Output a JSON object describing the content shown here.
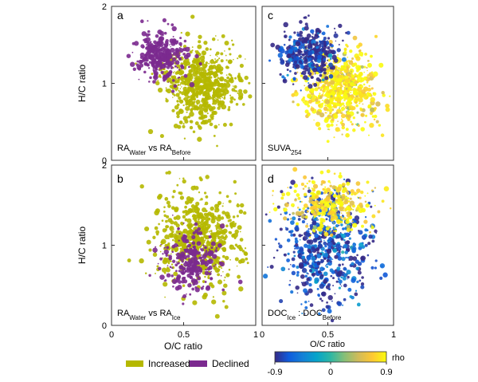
{
  "chart_data": [
    {
      "type": "scatter",
      "panel_letter": "a",
      "annotation_main": "RA",
      "annotation_sub1": "Water",
      "annotation_mid": " vs RA",
      "annotation_sub2": "Before",
      "xlabel": "",
      "ylabel": "H/C ratio",
      "xlim": [
        0,
        1
      ],
      "ylim": [
        0,
        2
      ],
      "x_ticks": [],
      "y_ticks": [
        "0",
        "1",
        "2"
      ],
      "color_mode": "categorical",
      "series": [
        {
          "name": "Increased",
          "color": "#b5b800",
          "cx": 0.62,
          "cy": 0.98,
          "sx": 0.13,
          "sy": 0.24,
          "n": 650
        },
        {
          "name": "Declined",
          "color": "#7b2a8f",
          "cx": 0.34,
          "cy": 1.36,
          "sx": 0.08,
          "sy": 0.16,
          "n": 320
        }
      ]
    },
    {
      "type": "scatter",
      "panel_letter": "c",
      "annotation_main": "SUVA",
      "annotation_sub1": "254",
      "annotation_mid": "",
      "annotation_sub2": "",
      "xlabel": "",
      "ylabel": "",
      "xlim": [
        0,
        1
      ],
      "ylim": [
        0,
        2
      ],
      "x_ticks": [],
      "y_ticks": [],
      "color_mode": "rho",
      "series": [
        {
          "name": "positive",
          "rho": 0.8,
          "cx": 0.6,
          "cy": 0.92,
          "sx": 0.14,
          "sy": 0.24,
          "n": 650
        },
        {
          "name": "negative",
          "rho": -0.85,
          "cx": 0.36,
          "cy": 1.4,
          "sx": 0.1,
          "sy": 0.18,
          "n": 380
        }
      ]
    },
    {
      "type": "scatter",
      "panel_letter": "b",
      "annotation_main": "RA",
      "annotation_sub1": "Water",
      "annotation_mid": " vs RA",
      "annotation_sub2": "Ice",
      "xlabel": "O/C ratio",
      "ylabel": "H/C ratio",
      "xlim": [
        0,
        1
      ],
      "ylim": [
        0,
        2
      ],
      "x_ticks": [
        "0",
        "0.5",
        "1"
      ],
      "y_ticks": [
        "0",
        "1",
        "2"
      ],
      "color_mode": "categorical",
      "series": [
        {
          "name": "Increased",
          "color": "#b5b800",
          "cx": 0.6,
          "cy": 1.08,
          "sx": 0.15,
          "sy": 0.3,
          "n": 640
        },
        {
          "name": "Declined",
          "color": "#7b2a8f",
          "cx": 0.55,
          "cy": 0.78,
          "sx": 0.1,
          "sy": 0.18,
          "n": 260
        }
      ]
    },
    {
      "type": "scatter",
      "panel_letter": "d",
      "annotation_main": "DOC",
      "annotation_sub1": "Ice",
      "annotation_mid": " : DOC",
      "annotation_sub2": "Before",
      "xlabel": "O/C ratio",
      "ylabel": "",
      "xlim": [
        0,
        1
      ],
      "ylim": [
        0,
        2
      ],
      "x_ticks": [
        "0",
        "0.5",
        "1"
      ],
      "y_ticks": [],
      "color_mode": "rho",
      "series": [
        {
          "name": "negative",
          "rho": -0.75,
          "cx": 0.5,
          "cy": 0.98,
          "sx": 0.17,
          "sy": 0.34,
          "n": 600
        },
        {
          "name": "positive",
          "rho": 0.75,
          "cx": 0.52,
          "cy": 1.48,
          "sx": 0.16,
          "sy": 0.18,
          "n": 300
        }
      ]
    }
  ],
  "legend": {
    "items": [
      {
        "label": "Increased",
        "color": "#b5b800"
      },
      {
        "label": "Declined",
        "color": "#7b2a8f"
      }
    ]
  },
  "colorbar": {
    "label": "rho",
    "tick_labels": [
      "-0.9",
      "0",
      "0.9"
    ],
    "range": [
      -0.9,
      0.9
    ],
    "colors": [
      "#352a87",
      "#0f5cdd",
      "#1481d6",
      "#06a4ca",
      "#2eb7a4",
      "#87bf77",
      "#d1bb59",
      "#fec832",
      "#f9fb0e"
    ]
  }
}
